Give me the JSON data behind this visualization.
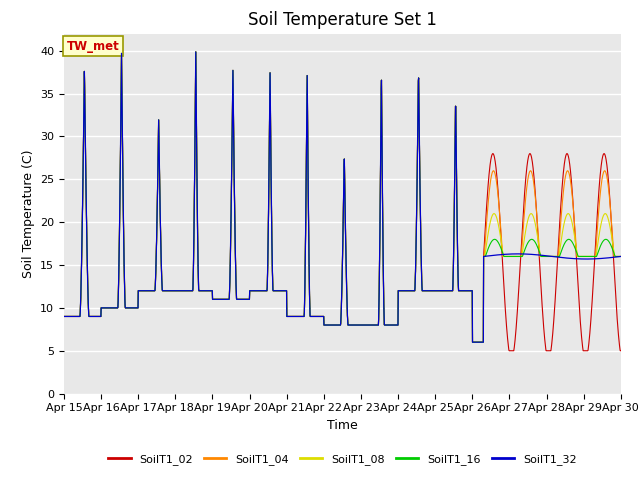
{
  "title": "Soil Temperature Set 1",
  "xlabel": "Time",
  "ylabel": "Soil Temperature (C)",
  "ylim": [
    0,
    42
  ],
  "yticks": [
    0,
    5,
    10,
    15,
    20,
    25,
    30,
    35,
    40
  ],
  "colors": {
    "SoilT1_02": "#cc0000",
    "SoilT1_04": "#ff8800",
    "SoilT1_08": "#dddd00",
    "SoilT1_16": "#00cc00",
    "SoilT1_32": "#0000cc"
  },
  "annotation_text": "TW_met",
  "bg_color": "#e8e8e8",
  "grid_color": "#ffffff",
  "xtick_labels": [
    "Apr 15",
    "Apr 16",
    "Apr 17",
    "Apr 18",
    "Apr 19",
    "Apr 20",
    "Apr 21",
    "Apr 22",
    "Apr 23",
    "Apr 24",
    "Apr 25",
    "Apr 26",
    "Apr 27",
    "Apr 28",
    "Apr 29",
    "Apr 30"
  ],
  "title_fontsize": 12,
  "axis_fontsize": 9,
  "tick_fontsize": 8
}
